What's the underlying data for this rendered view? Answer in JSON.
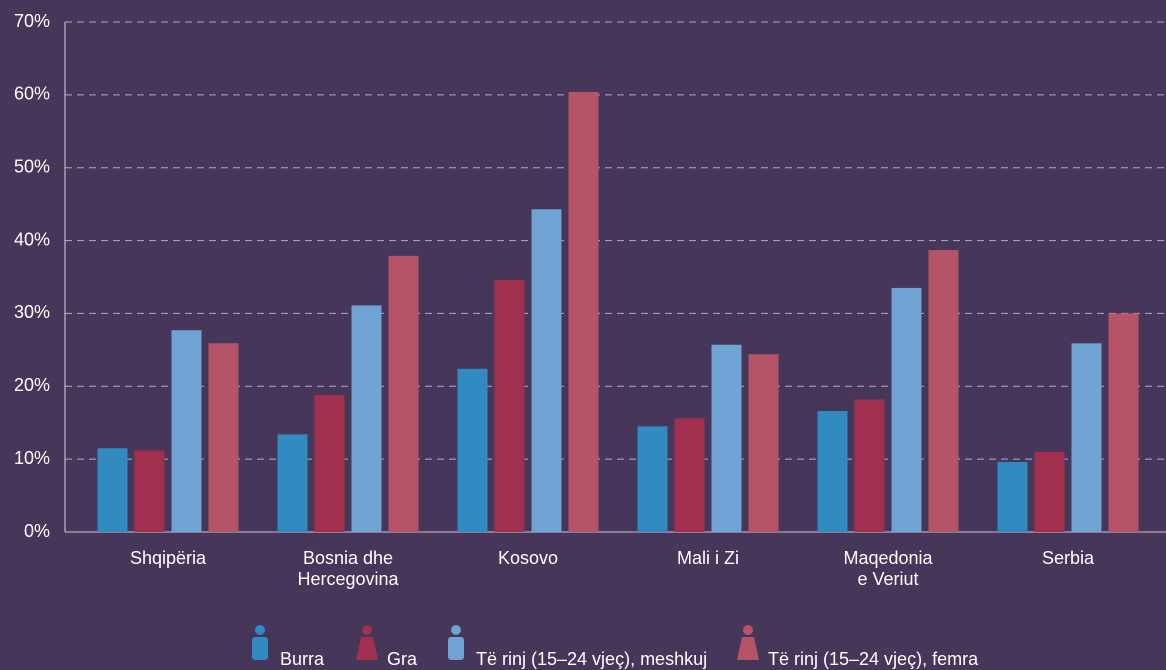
{
  "chart_data": {
    "type": "bar",
    "categories": [
      "Shqipëria",
      "Bosnia dhe\nHercegovina",
      "Kosovo",
      "Mali i Zi",
      "Maqedonia\ne Veriut",
      "Serbia"
    ],
    "series": [
      {
        "name": "Burra",
        "color": "#318bc0",
        "values": [
          11.5,
          13.4,
          22.4,
          14.5,
          16.6,
          9.6
        ]
      },
      {
        "name": "Gra",
        "color": "#a0304e",
        "values": [
          11.2,
          18.8,
          34.6,
          15.6,
          18.2,
          11.0
        ]
      },
      {
        "name": "Të rinj (15–24 vjeç), meshkuj",
        "color": "#6ea3d4",
        "values": [
          27.7,
          31.1,
          44.3,
          25.7,
          33.5,
          25.9
        ]
      },
      {
        "name": "Të rinj (15–24 vjeç), femra",
        "color": "#b55467",
        "values": [
          25.9,
          37.9,
          60.4,
          24.4,
          38.7,
          30.0
        ]
      }
    ],
    "ylim": [
      0,
      70
    ],
    "yticks": [
      {
        "value": 0,
        "label": "0%"
      },
      {
        "value": 10,
        "label": "10%"
      },
      {
        "value": 20,
        "label": "20%"
      },
      {
        "value": 30,
        "label": "30%"
      },
      {
        "value": 40,
        "label": "40%"
      },
      {
        "value": 50,
        "label": "50%"
      },
      {
        "value": 60,
        "label": "60%"
      },
      {
        "value": 70,
        "label": "70%"
      }
    ],
    "grid": true,
    "legend": "bottom"
  }
}
